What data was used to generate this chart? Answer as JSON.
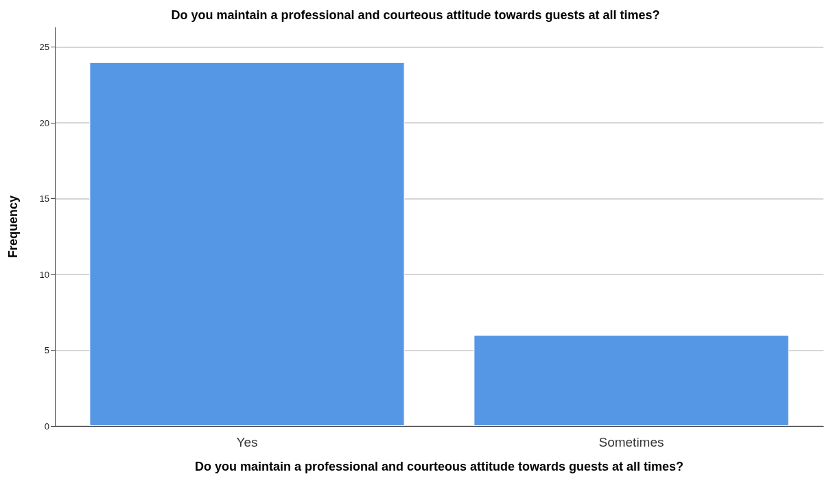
{
  "chart_data": {
    "type": "bar",
    "title": "Do you maintain a professional and courteous attitude towards guests at all times?",
    "xlabel": "Do you maintain a professional and courteous attitude towards guests at all times?",
    "ylabel": "Frequency",
    "categories": [
      "Yes",
      "Sometimes"
    ],
    "values": [
      24,
      6
    ],
    "color": "#5596e5",
    "ylim": [
      0,
      26.3
    ],
    "yticks": [
      0,
      5,
      10,
      15,
      20,
      25
    ],
    "grid": "y"
  }
}
